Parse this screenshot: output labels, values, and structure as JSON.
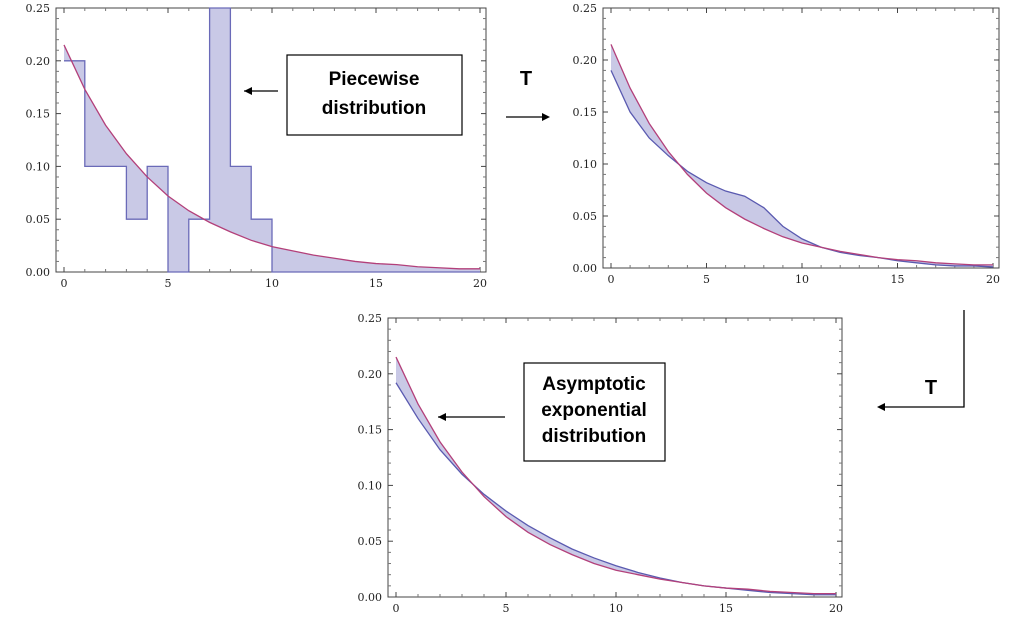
{
  "chart_data": [
    {
      "type": "line",
      "name": "top-left",
      "xlim": [
        0,
        20
      ],
      "ylim": [
        0,
        0.25
      ],
      "xticks": [
        0,
        5,
        10,
        15,
        20
      ],
      "yticks": [
        "0.00",
        "0.05",
        "0.10",
        "0.15",
        "0.20",
        "0.25"
      ],
      "series": [
        {
          "kind": "step",
          "color": "#6a6ab8",
          "fill": "#c9c9e6",
          "x_edges": [
            0,
            1,
            2,
            3,
            4,
            5,
            6,
            7,
            8,
            9,
            10,
            20
          ],
          "values": [
            0.2,
            0.1,
            0.1,
            0.05,
            0.1,
            0.0,
            0.05,
            0.25,
            0.1,
            0.05,
            0.0
          ]
        },
        {
          "kind": "curve",
          "color": "#b3407a",
          "x": [
            0,
            1,
            2,
            3,
            4,
            5,
            6,
            7,
            8,
            9,
            10,
            11,
            12,
            13,
            14,
            15,
            16,
            17,
            18,
            19,
            20
          ],
          "values": [
            0.215,
            0.173,
            0.139,
            0.112,
            0.09,
            0.072,
            0.058,
            0.047,
            0.038,
            0.03,
            0.024,
            0.02,
            0.016,
            0.013,
            0.01,
            0.008,
            0.007,
            0.005,
            0.004,
            0.003,
            0.003
          ]
        }
      ]
    },
    {
      "type": "line",
      "name": "top-right",
      "xlim": [
        0,
        20
      ],
      "ylim": [
        0,
        0.25
      ],
      "xticks": [
        0,
        5,
        10,
        15,
        20
      ],
      "yticks": [
        "0.00",
        "0.05",
        "0.10",
        "0.15",
        "0.20",
        "0.25"
      ],
      "series": [
        {
          "kind": "curve",
          "color": "#5a5ab0",
          "fill": "#c9c9e6",
          "x": [
            0,
            1,
            2,
            3,
            4,
            5,
            6,
            7,
            8,
            9,
            10,
            11,
            12,
            13,
            14,
            15,
            16,
            17,
            18,
            19,
            20
          ],
          "values": [
            0.19,
            0.15,
            0.125,
            0.108,
            0.093,
            0.082,
            0.074,
            0.069,
            0.058,
            0.04,
            0.028,
            0.02,
            0.015,
            0.012,
            0.01,
            0.007,
            0.005,
            0.003,
            0.002,
            0.002,
            0.001
          ]
        },
        {
          "kind": "curve",
          "color": "#b3407a",
          "x": [
            0,
            1,
            2,
            3,
            4,
            5,
            6,
            7,
            8,
            9,
            10,
            11,
            12,
            13,
            14,
            15,
            16,
            17,
            18,
            19,
            20
          ],
          "values": [
            0.215,
            0.173,
            0.139,
            0.112,
            0.09,
            0.072,
            0.058,
            0.047,
            0.038,
            0.03,
            0.024,
            0.02,
            0.016,
            0.013,
            0.01,
            0.008,
            0.007,
            0.005,
            0.004,
            0.003,
            0.003
          ]
        }
      ]
    },
    {
      "type": "line",
      "name": "bottom",
      "xlim": [
        0,
        20
      ],
      "ylim": [
        0,
        0.25
      ],
      "xticks": [
        0,
        5,
        10,
        15,
        20
      ],
      "yticks": [
        "0.00",
        "0.05",
        "0.10",
        "0.15",
        "0.20",
        "0.25"
      ],
      "series": [
        {
          "kind": "curve",
          "color": "#5a5ab0",
          "fill": "#c9c9e6",
          "x": [
            0,
            1,
            2,
            3,
            4,
            5,
            6,
            7,
            8,
            9,
            10,
            11,
            12,
            13,
            14,
            15,
            16,
            17,
            18,
            19,
            20
          ],
          "values": [
            0.192,
            0.16,
            0.132,
            0.11,
            0.092,
            0.077,
            0.064,
            0.053,
            0.043,
            0.035,
            0.028,
            0.022,
            0.017,
            0.013,
            0.01,
            0.008,
            0.006,
            0.004,
            0.003,
            0.002,
            0.002
          ]
        },
        {
          "kind": "curve",
          "color": "#b3407a",
          "x": [
            0,
            1,
            2,
            3,
            4,
            5,
            6,
            7,
            8,
            9,
            10,
            11,
            12,
            13,
            14,
            15,
            16,
            17,
            18,
            19,
            20
          ],
          "values": [
            0.215,
            0.173,
            0.139,
            0.112,
            0.09,
            0.072,
            0.058,
            0.047,
            0.038,
            0.03,
            0.024,
            0.02,
            0.016,
            0.013,
            0.01,
            0.008,
            0.007,
            0.005,
            0.004,
            0.003,
            0.003
          ]
        }
      ]
    }
  ],
  "annotations": {
    "piecewise": [
      "Piecewise",
      "distribution"
    ],
    "asymptotic": [
      "Asymptotic",
      "exponential",
      "distribution"
    ],
    "transform_1": "T",
    "transform_2": "T"
  }
}
